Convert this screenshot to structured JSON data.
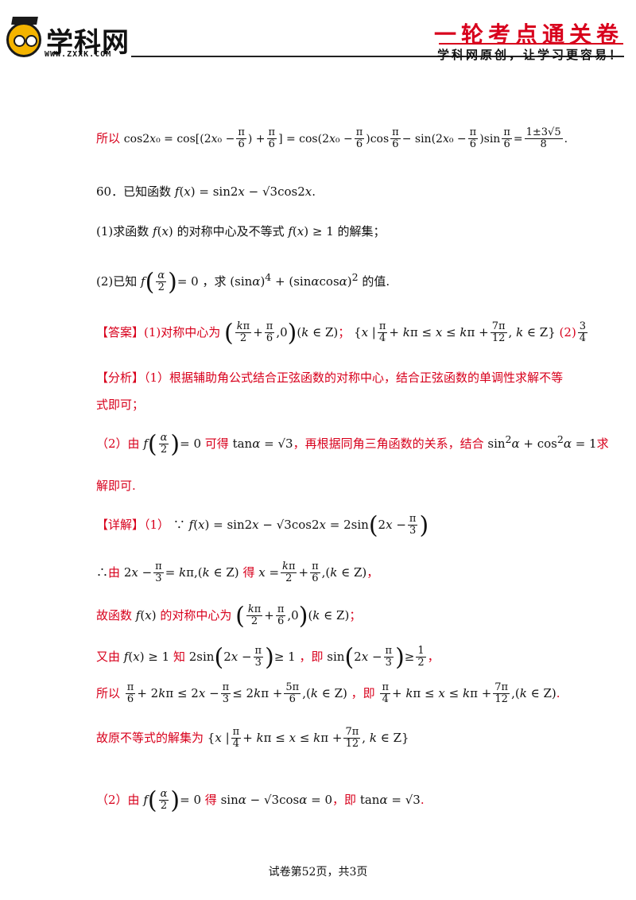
{
  "header": {
    "logo_text": "学科网",
    "logo_url": "WWW.ZXXK.COM",
    "series_title": "一轮考点通关卷",
    "slogan": "学科网原创，让学习更容易！"
  },
  "content": {
    "line1_prefix": "所以",
    "line1_math": "cos2x₀ = cos[(2x₀ − π/6) + π/6] = cos(2x₀ − π/6)cos π/6 − sin(2x₀ − π/6)sin π/6 = (1±3√5)/8",
    "problem_intro": "60．已知函数",
    "problem_func": "f(x) = sin2x − √3cos2x",
    "q1_a": "(1)求函数",
    "q1_b": "的对称中心及不等式",
    "q1_c": "的解集；",
    "q2_a": "(2)已知",
    "q2_b": "，求",
    "q2_c": "的值.",
    "answer_tag": "【答案】",
    "answer_a": "(1)对称中心为",
    "answer_b": "(2)",
    "analysis_tag": "【分析】",
    "analysis_1": "（1）根据辅助角公式结合正弦函数的对称中心，结合正弦函数的单调性求解不等",
    "analysis_1b": "式即可；",
    "analysis_2a": "（2）由",
    "analysis_2b": "可得",
    "analysis_2c": "，再根据同角三角函数的关系，结合",
    "analysis_2d": "求",
    "analysis_2e": "解即可.",
    "detail_tag": "【详解】",
    "detail_1": "（1）",
    "d2_a": "由",
    "d2_b": "得",
    "d3_a": "故函数",
    "d3_b": "的对称中心为",
    "d4_a": "又由",
    "d4_b": "知",
    "d4_c": "，即",
    "d5_a": "所以",
    "d5_b": "，即",
    "d6_a": "故原不等式的解集为",
    "d7_a": "（2）由",
    "d7_b": "得",
    "d7_c": "，即"
  },
  "footer": {
    "page_label": "试卷第52页，共3页"
  }
}
